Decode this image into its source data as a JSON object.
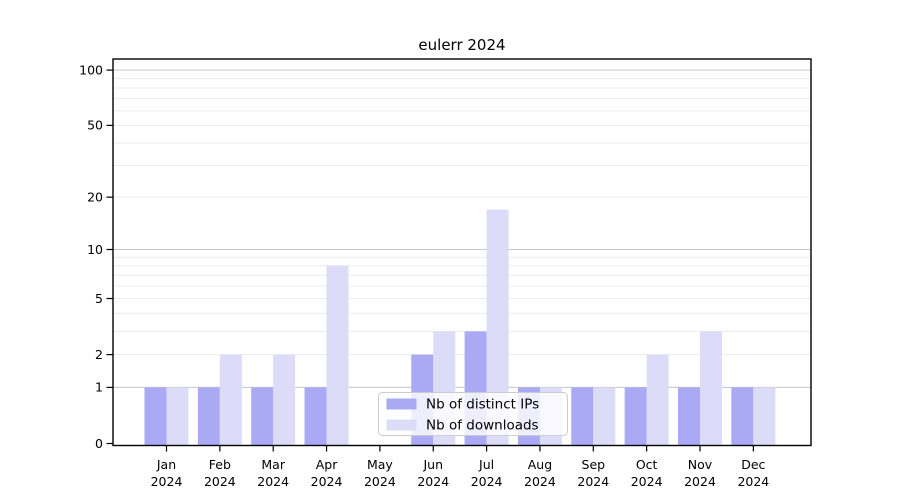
{
  "chart_data": {
    "type": "bar",
    "title": "eulerr 2024",
    "categories": [
      "Jan",
      "Feb",
      "Mar",
      "Apr",
      "May",
      "Jun",
      "Jul",
      "Aug",
      "Sep",
      "Oct",
      "Nov",
      "Dec"
    ],
    "category_year": "2024",
    "series": [
      {
        "name": "Nb of distinct IPs",
        "color": "#a9a9f4",
        "values": [
          1,
          1,
          1,
          1,
          0,
          2,
          3,
          1,
          1,
          1,
          1,
          1
        ]
      },
      {
        "name": "Nb of downloads",
        "color": "#dcdcf9",
        "values": [
          1,
          2,
          2,
          8,
          0,
          3,
          17,
          1,
          1,
          2,
          3,
          1
        ]
      }
    ],
    "yscale": "log1p",
    "ylim": [
      0,
      100
    ],
    "yticks": [
      0,
      1,
      2,
      5,
      10,
      20,
      50,
      100
    ],
    "ytick_labels": [
      "0",
      "1",
      "2",
      "5",
      "10",
      "20",
      "50",
      "100"
    ],
    "major_gridlines": [
      1,
      10,
      100
    ],
    "minor_gridlines": [
      2,
      3,
      4,
      5,
      6,
      7,
      8,
      9,
      20,
      30,
      40,
      50,
      60,
      70,
      80,
      90
    ],
    "grid": true,
    "legend_position": "bottom-center",
    "colors": {
      "grid_major": "#c6c6c6",
      "grid_minor": "#ececec",
      "spine": "#000000",
      "tick": "#000000",
      "legend_bg": "rgba(255,255,255,0.8)",
      "legend_border": "#cccccc",
      "text": "#000000",
      "background": "#ffffff"
    }
  }
}
